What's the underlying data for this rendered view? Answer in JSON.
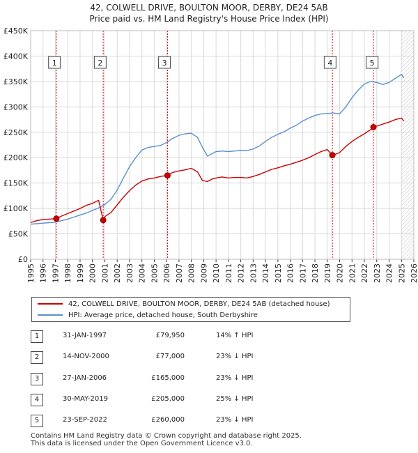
{
  "title": {
    "line1": "42, COLWELL DRIVE, BOULTON MOOR, DERBY, DE24 5AB",
    "line2": "Price paid vs. HM Land Registry's House Price Index (HPI)"
  },
  "colors": {
    "property_line": "#cc0000",
    "hpi_line": "#5b8fcf",
    "grid": "#d9d9d9",
    "marker_vline": "#cc0000"
  },
  "chart_data": {
    "type": "line",
    "title": "Price paid vs. HM Land Registry's House Price Index (HPI)",
    "xlabel": "",
    "ylabel": "",
    "xlim": [
      1995,
      2026
    ],
    "ylim": [
      0,
      450000
    ],
    "y_ticks": [
      {
        "value": 0,
        "label": "£0"
      },
      {
        "value": 50000,
        "label": "£50K"
      },
      {
        "value": 100000,
        "label": "£100K"
      },
      {
        "value": 150000,
        "label": "£150K"
      },
      {
        "value": 200000,
        "label": "£200K"
      },
      {
        "value": 250000,
        "label": "£250K"
      },
      {
        "value": 300000,
        "label": "£300K"
      },
      {
        "value": 350000,
        "label": "£350K"
      },
      {
        "value": 400000,
        "label": "£400K"
      },
      {
        "value": 450000,
        "label": "£450K"
      }
    ],
    "x_ticks": [
      "1995",
      "1996",
      "1997",
      "1998",
      "1999",
      "2000",
      "2001",
      "2002",
      "2003",
      "2004",
      "2005",
      "2006",
      "2007",
      "2008",
      "2009",
      "2010",
      "2011",
      "2012",
      "2013",
      "2014",
      "2015",
      "2016",
      "2017",
      "2018",
      "2019",
      "2020",
      "2021",
      "2022",
      "2023",
      "2024",
      "2025",
      "2026"
    ],
    "series": [
      {
        "name": "42, COLWELL DRIVE, BOULTON MOOR, DERBY, DE24 5AB (detached house)",
        "color": "#cc0000",
        "x": [
          1995.0,
          1995.5,
          1996.0,
          1996.5,
          1997.08,
          1997.5,
          1998.0,
          1998.5,
          1999.0,
          1999.5,
          2000.0,
          2000.5,
          2000.87,
          2001.0,
          2001.5,
          2002.0,
          2002.5,
          2003.0,
          2003.5,
          2004.0,
          2004.5,
          2005.0,
          2005.5,
          2006.07,
          2006.5,
          2007.0,
          2007.5,
          2008.0,
          2008.5,
          2008.9,
          2009.3,
          2009.7,
          2010.0,
          2010.5,
          2011.0,
          2011.5,
          2012.0,
          2012.5,
          2013.0,
          2013.5,
          2014.0,
          2014.5,
          2015.0,
          2015.5,
          2016.0,
          2016.5,
          2017.0,
          2017.5,
          2018.0,
          2018.5,
          2019.0,
          2019.41,
          2019.7,
          2020.0,
          2020.5,
          2021.0,
          2021.5,
          2022.0,
          2022.5,
          2022.73,
          2023.0,
          2023.5,
          2024.0,
          2024.5,
          2025.0,
          2025.2
        ],
        "values": [
          72000,
          76000,
          78000,
          79000,
          79950,
          85000,
          90000,
          95000,
          100000,
          106000,
          110000,
          116000,
          77000,
          84000,
          92000,
          107000,
          122000,
          135000,
          146000,
          154000,
          158000,
          160000,
          163000,
          165000,
          171000,
          174000,
          176000,
          179000,
          172000,
          155000,
          153000,
          158000,
          160000,
          162000,
          160000,
          161000,
          161000,
          160000,
          163000,
          167000,
          172000,
          177000,
          180000,
          184000,
          187000,
          191000,
          195000,
          200000,
          206000,
          212000,
          216000,
          205000,
          207000,
          210000,
          222000,
          232000,
          240000,
          247000,
          255000,
          260000,
          262000,
          266000,
          270000,
          275000,
          278000,
          272000
        ]
      },
      {
        "name": "HPI: Average price, detached house, South Derbyshire",
        "color": "#5b8fcf",
        "x": [
          1995.0,
          1995.5,
          1996.0,
          1996.5,
          1997.0,
          1997.5,
          1998.0,
          1998.5,
          1999.0,
          1999.5,
          2000.0,
          2000.5,
          2001.0,
          2001.5,
          2002.0,
          2002.5,
          2003.0,
          2003.5,
          2004.0,
          2004.5,
          2005.0,
          2005.5,
          2006.0,
          2006.5,
          2007.0,
          2007.5,
          2008.0,
          2008.5,
          2008.9,
          2009.3,
          2009.7,
          2010.0,
          2010.5,
          2011.0,
          2011.5,
          2012.0,
          2012.5,
          2013.0,
          2013.5,
          2014.0,
          2014.5,
          2015.0,
          2015.5,
          2016.0,
          2016.5,
          2017.0,
          2017.5,
          2018.0,
          2018.5,
          2019.0,
          2019.5,
          2020.0,
          2020.5,
          2021.0,
          2021.5,
          2022.0,
          2022.5,
          2023.0,
          2023.5,
          2024.0,
          2024.5,
          2025.0,
          2025.2
        ],
        "values": [
          69000,
          70000,
          71000,
          72000,
          73000,
          76000,
          79000,
          83000,
          87000,
          91000,
          96000,
          101000,
          108000,
          118000,
          136000,
          160000,
          182000,
          200000,
          215000,
          220000,
          222000,
          224000,
          230000,
          238000,
          244000,
          247000,
          248000,
          240000,
          220000,
          203000,
          208000,
          212000,
          213000,
          212000,
          213000,
          214000,
          214000,
          217000,
          223000,
          232000,
          240000,
          246000,
          251000,
          258000,
          264000,
          272000,
          278000,
          283000,
          286000,
          287000,
          288000,
          286000,
          300000,
          318000,
          333000,
          345000,
          350000,
          348000,
          344000,
          348000,
          356000,
          364000,
          357000
        ]
      }
    ],
    "markers": [
      {
        "label": "1",
        "x": 1997.08,
        "value": 79950
      },
      {
        "label": "2",
        "x": 2000.87,
        "value": 77000
      },
      {
        "label": "3",
        "x": 2006.07,
        "value": 165000
      },
      {
        "label": "4",
        "x": 2019.41,
        "value": 205000
      },
      {
        "label": "5",
        "x": 2022.73,
        "value": 260000
      }
    ],
    "marker_boxes": [
      {
        "label": "1",
        "x": 1996.9
      },
      {
        "label": "2",
        "x": 2000.6
      },
      {
        "label": "3",
        "x": 2005.8
      },
      {
        "label": "4",
        "x": 2019.2
      },
      {
        "label": "5",
        "x": 2022.6
      }
    ],
    "hatched_from": 2025.0
  },
  "legend": {
    "property_label": "42, COLWELL DRIVE, BOULTON MOOR, DERBY, DE24 5AB (detached house)",
    "hpi_label": "HPI: Average price, detached house, South Derbyshire"
  },
  "transactions": [
    {
      "num": "1",
      "date": "31-JAN-1997",
      "price": "£79,950",
      "relative": "14% ↑ HPI"
    },
    {
      "num": "2",
      "date": "14-NOV-2000",
      "price": "£77,000",
      "relative": "23% ↓ HPI"
    },
    {
      "num": "3",
      "date": "27-JAN-2006",
      "price": "£165,000",
      "relative": "23% ↓ HPI"
    },
    {
      "num": "4",
      "date": "30-MAY-2019",
      "price": "£205,000",
      "relative": "25% ↓ HPI"
    },
    {
      "num": "5",
      "date": "23-SEP-2022",
      "price": "£260,000",
      "relative": "23% ↓ HPI"
    }
  ],
  "footer": {
    "line1": "Contains HM Land Registry data © Crown copyright and database right 2025.",
    "line2": "This data is licensed under the Open Government Licence v3.0."
  }
}
